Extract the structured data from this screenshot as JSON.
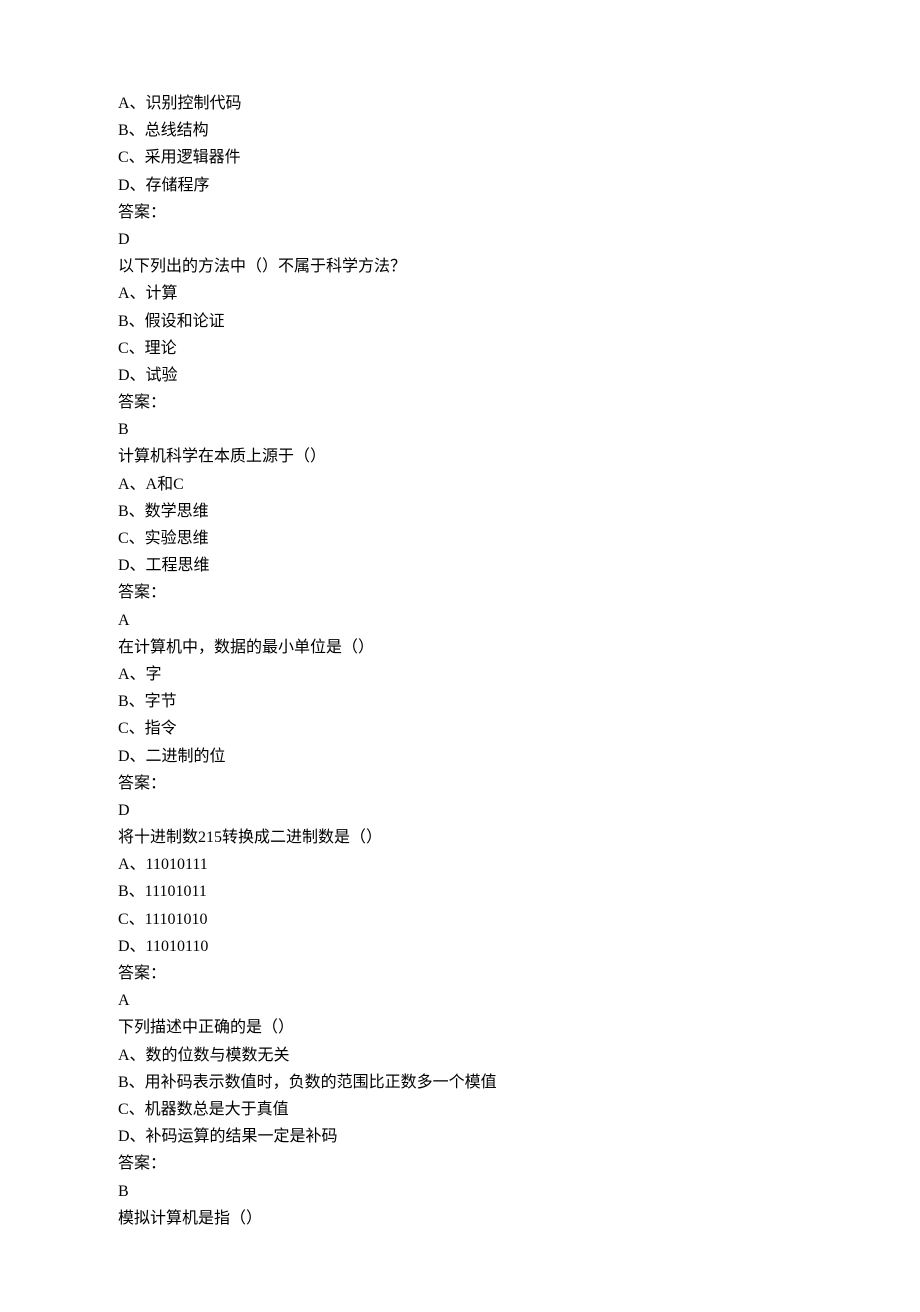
{
  "questions": [
    {
      "options": [
        "A、识别控制代码",
        "B、总线结构",
        "C、采用逻辑器件",
        "D、存储程序"
      ],
      "answer_label": "答案：",
      "answer": "D"
    },
    {
      "stem": "以下列出的方法中（）不属于科学方法？",
      "options": [
        "A、计算",
        "B、假设和论证",
        "C、理论",
        "D、试验"
      ],
      "answer_label": "答案：",
      "answer": "B"
    },
    {
      "stem": "计算机科学在本质上源于（）",
      "options": [
        "A、A和C",
        "B、数学思维",
        "C、实验思维",
        "D、工程思维"
      ],
      "answer_label": "答案：",
      "answer": "A"
    },
    {
      "stem": "在计算机中，数据的最小单位是（）",
      "options": [
        "A、字",
        "B、字节",
        "C、指令",
        "D、二进制的位"
      ],
      "answer_label": "答案：",
      "answer": "D"
    },
    {
      "stem": "将十进制数215转换成二进制数是（）",
      "options": [
        "A、11010111",
        "B、11101011",
        "C、11101010",
        "D、11010110"
      ],
      "answer_label": "答案：",
      "answer": "A"
    },
    {
      "stem": "下列描述中正确的是（）",
      "options": [
        "A、数的位数与模数无关",
        "B、用补码表示数值时，负数的范围比正数多一个模值",
        "C、机器数总是大于真值",
        "D、补码运算的结果一定是补码"
      ],
      "answer_label": "答案：",
      "answer": "B"
    },
    {
      "stem": "模拟计算机是指（）"
    }
  ]
}
